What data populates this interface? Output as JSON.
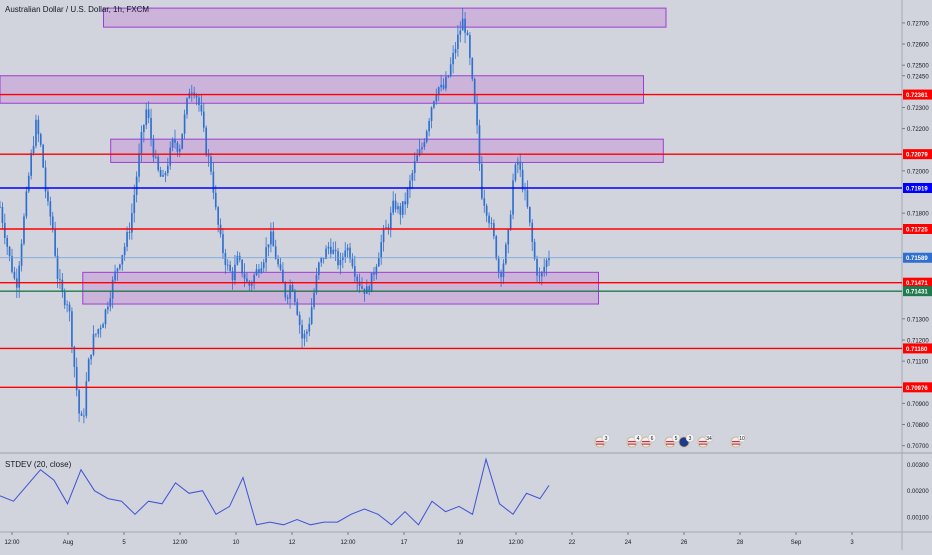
{
  "header": {
    "symbol_title": "Australian Dollar / U.S. Dollar, 1h, FXCM"
  },
  "indicator": {
    "label": "STDEV (20, close)",
    "line_color": "#3f51d6"
  },
  "colors": {
    "background": "#d1d4dc",
    "candle": "#2f6fd0",
    "zone_fill": "#c9a8d9",
    "zone_stroke": "#9b3fd0",
    "red_line": "#ff0000",
    "blue_line": "#0000ff",
    "green_line": "#1f7a4d",
    "price_line": "#6aa0e0"
  },
  "chart_data": [
    {
      "type": "candlestick",
      "title": "Australian Dollar / U.S. Dollar, 1h, FXCM",
      "price_axis": {
        "ticks": [
          "0.72700",
          "0.72600",
          "0.72500",
          "0.72450",
          "0.72300",
          "0.72200",
          "0.72000",
          "0.71800",
          "0.71300",
          "0.71200",
          "0.71100",
          "0.70900",
          "0.70800",
          "0.70700"
        ],
        "ylim": [
          0.7067,
          0.7278
        ]
      },
      "time_axis": {
        "ticks": [
          "12:00",
          "Aug",
          "5",
          "12:00",
          "10",
          "12",
          "12:00",
          "17",
          "19",
          "12:00",
          "22",
          "24",
          "26",
          "28",
          "Sep",
          "3"
        ]
      },
      "horizontal_levels": [
        {
          "value": "0.72361",
          "color": "red"
        },
        {
          "value": "0.72079",
          "color": "red"
        },
        {
          "value": "0.71919",
          "color": "blue"
        },
        {
          "value": "0.71725",
          "color": "red"
        },
        {
          "value": "0.71589",
          "color": "current"
        },
        {
          "value": "0.71471",
          "color": "red"
        },
        {
          "value": "0.71431",
          "color": "green"
        },
        {
          "value": "0.71160",
          "color": "red"
        },
        {
          "value": "0.70976",
          "color": "red"
        }
      ],
      "zones": [
        {
          "t_start": 0.115,
          "t_end": 0.74,
          "low": 0.7268,
          "high": 0.7277
        },
        {
          "t_start": 0.0,
          "t_end": 0.715,
          "low": 0.7232,
          "high": 0.7245
        },
        {
          "t_start": 0.123,
          "t_end": 0.737,
          "low": 0.7204,
          "high": 0.7215
        },
        {
          "t_start": 0.092,
          "t_end": 0.665,
          "low": 0.7137,
          "high": 0.7152
        }
      ],
      "price_series": [
        [
          0.0,
          0.7183
        ],
        [
          0.01,
          0.716
        ],
        [
          0.018,
          0.7145
        ],
        [
          0.026,
          0.7175
        ],
        [
          0.034,
          0.7205
        ],
        [
          0.04,
          0.7222
        ],
        [
          0.046,
          0.721
        ],
        [
          0.052,
          0.7185
        ],
        [
          0.058,
          0.7175
        ],
        [
          0.064,
          0.715
        ],
        [
          0.07,
          0.714
        ],
        [
          0.076,
          0.7138
        ],
        [
          0.082,
          0.711
        ],
        [
          0.088,
          0.7085
        ],
        [
          0.092,
          0.708
        ],
        [
          0.097,
          0.7105
        ],
        [
          0.103,
          0.712
        ],
        [
          0.109,
          0.7125
        ],
        [
          0.115,
          0.713
        ],
        [
          0.121,
          0.714
        ],
        [
          0.127,
          0.715
        ],
        [
          0.133,
          0.7158
        ],
        [
          0.139,
          0.7165
        ],
        [
          0.145,
          0.7175
        ],
        [
          0.151,
          0.7195
        ],
        [
          0.157,
          0.7215
        ],
        [
          0.163,
          0.723
        ],
        [
          0.169,
          0.7212
        ],
        [
          0.175,
          0.72
        ],
        [
          0.181,
          0.7195
        ],
        [
          0.187,
          0.7205
        ],
        [
          0.193,
          0.7215
        ],
        [
          0.199,
          0.721
        ],
        [
          0.205,
          0.7225
        ],
        [
          0.211,
          0.724
        ],
        [
          0.217,
          0.7238
        ],
        [
          0.223,
          0.7228
        ],
        [
          0.229,
          0.721
        ],
        [
          0.235,
          0.72
        ],
        [
          0.24,
          0.718
        ],
        [
          0.246,
          0.7165
        ],
        [
          0.252,
          0.7155
        ],
        [
          0.258,
          0.715
        ],
        [
          0.264,
          0.7158
        ],
        [
          0.27,
          0.7152
        ],
        [
          0.276,
          0.7145
        ],
        [
          0.282,
          0.715
        ],
        [
          0.288,
          0.7155
        ],
        [
          0.294,
          0.716
        ],
        [
          0.3,
          0.717
        ],
        [
          0.306,
          0.716
        ],
        [
          0.312,
          0.715
        ],
        [
          0.318,
          0.714
        ],
        [
          0.324,
          0.7148
        ],
        [
          0.33,
          0.7135
        ],
        [
          0.336,
          0.712
        ],
        [
          0.342,
          0.7125
        ],
        [
          0.348,
          0.714
        ],
        [
          0.354,
          0.7155
        ],
        [
          0.36,
          0.716
        ],
        [
          0.366,
          0.7165
        ],
        [
          0.372,
          0.716
        ],
        [
          0.378,
          0.7155
        ],
        [
          0.384,
          0.7165
        ],
        [
          0.39,
          0.716
        ],
        [
          0.396,
          0.715
        ],
        [
          0.402,
          0.7145
        ],
        [
          0.408,
          0.7143
        ],
        [
          0.414,
          0.715
        ],
        [
          0.42,
          0.716
        ],
        [
          0.426,
          0.717
        ],
        [
          0.432,
          0.7175
        ],
        [
          0.438,
          0.7185
        ],
        [
          0.444,
          0.718
        ],
        [
          0.45,
          0.7185
        ],
        [
          0.456,
          0.7195
        ],
        [
          0.462,
          0.7205
        ],
        [
          0.468,
          0.721
        ],
        [
          0.474,
          0.722
        ],
        [
          0.48,
          0.7232
        ],
        [
          0.486,
          0.724
        ],
        [
          0.492,
          0.7238
        ],
        [
          0.498,
          0.7245
        ],
        [
          0.504,
          0.7255
        ],
        [
          0.51,
          0.7265
        ],
        [
          0.515,
          0.7272
        ],
        [
          0.52,
          0.726
        ],
        [
          0.525,
          0.724
        ],
        [
          0.53,
          0.722
        ],
        [
          0.535,
          0.719
        ],
        [
          0.54,
          0.7183
        ],
        [
          0.545,
          0.7175
        ],
        [
          0.55,
          0.7165
        ],
        [
          0.555,
          0.715
        ],
        [
          0.56,
          0.7158
        ],
        [
          0.565,
          0.717
        ],
        [
          0.57,
          0.7195
        ],
        [
          0.575,
          0.7205
        ],
        [
          0.58,
          0.7195
        ],
        [
          0.585,
          0.7185
        ],
        [
          0.59,
          0.717
        ],
        [
          0.595,
          0.7155
        ],
        [
          0.6,
          0.7148
        ],
        [
          0.605,
          0.7155
        ],
        [
          0.61,
          0.716
        ]
      ]
    },
    {
      "type": "line",
      "title": "STDEV (20, close)",
      "y_axis": {
        "ticks": [
          "0.00300",
          "0.00200",
          "0.00100"
        ],
        "ylim": [
          0.0005,
          0.0034
        ]
      },
      "series": [
        {
          "values": [
            [
              0.0,
              0.0018
            ],
            [
              0.015,
              0.0016
            ],
            [
              0.03,
              0.0022
            ],
            [
              0.045,
              0.0028
            ],
            [
              0.06,
              0.0024
            ],
            [
              0.075,
              0.0015
            ],
            [
              0.09,
              0.0028
            ],
            [
              0.105,
              0.002
            ],
            [
              0.12,
              0.0017
            ],
            [
              0.135,
              0.0016
            ],
            [
              0.15,
              0.0011
            ],
            [
              0.165,
              0.0016
            ],
            [
              0.18,
              0.0015
            ],
            [
              0.195,
              0.0023
            ],
            [
              0.21,
              0.0019
            ],
            [
              0.225,
              0.002
            ],
            [
              0.24,
              0.0011
            ],
            [
              0.255,
              0.0014
            ],
            [
              0.27,
              0.0025
            ],
            [
              0.285,
              0.0007
            ],
            [
              0.3,
              0.0008
            ],
            [
              0.315,
              0.0007
            ],
            [
              0.33,
              0.0009
            ],
            [
              0.345,
              0.0007
            ],
            [
              0.36,
              0.0008
            ],
            [
              0.375,
              0.0008
            ],
            [
              0.39,
              0.0011
            ],
            [
              0.405,
              0.0013
            ],
            [
              0.42,
              0.0011
            ],
            [
              0.435,
              0.0007
            ],
            [
              0.45,
              0.0012
            ],
            [
              0.465,
              0.0007
            ],
            [
              0.48,
              0.0016
            ],
            [
              0.495,
              0.0012
            ],
            [
              0.51,
              0.0014
            ],
            [
              0.525,
              0.0011
            ],
            [
              0.54,
              0.0032
            ],
            [
              0.555,
              0.0015
            ],
            [
              0.57,
              0.0011
            ],
            [
              0.585,
              0.0019
            ],
            [
              0.6,
              0.0017
            ],
            [
              0.61,
              0.0022
            ]
          ]
        }
      ]
    }
  ],
  "event_icons": [
    {
      "label": "3",
      "icon": "us-flag-icon"
    },
    {
      "label": "4",
      "icon": "us-flag-icon"
    },
    {
      "label": "6",
      "icon": "us-flag-icon"
    },
    {
      "label": "5",
      "icon": "us-flag-icon"
    },
    {
      "label": "3",
      "icon": "au-flag-icon"
    },
    {
      "label": "34",
      "icon": "us-flag-icon"
    },
    {
      "label": "10",
      "icon": "us-flag-icon"
    }
  ]
}
